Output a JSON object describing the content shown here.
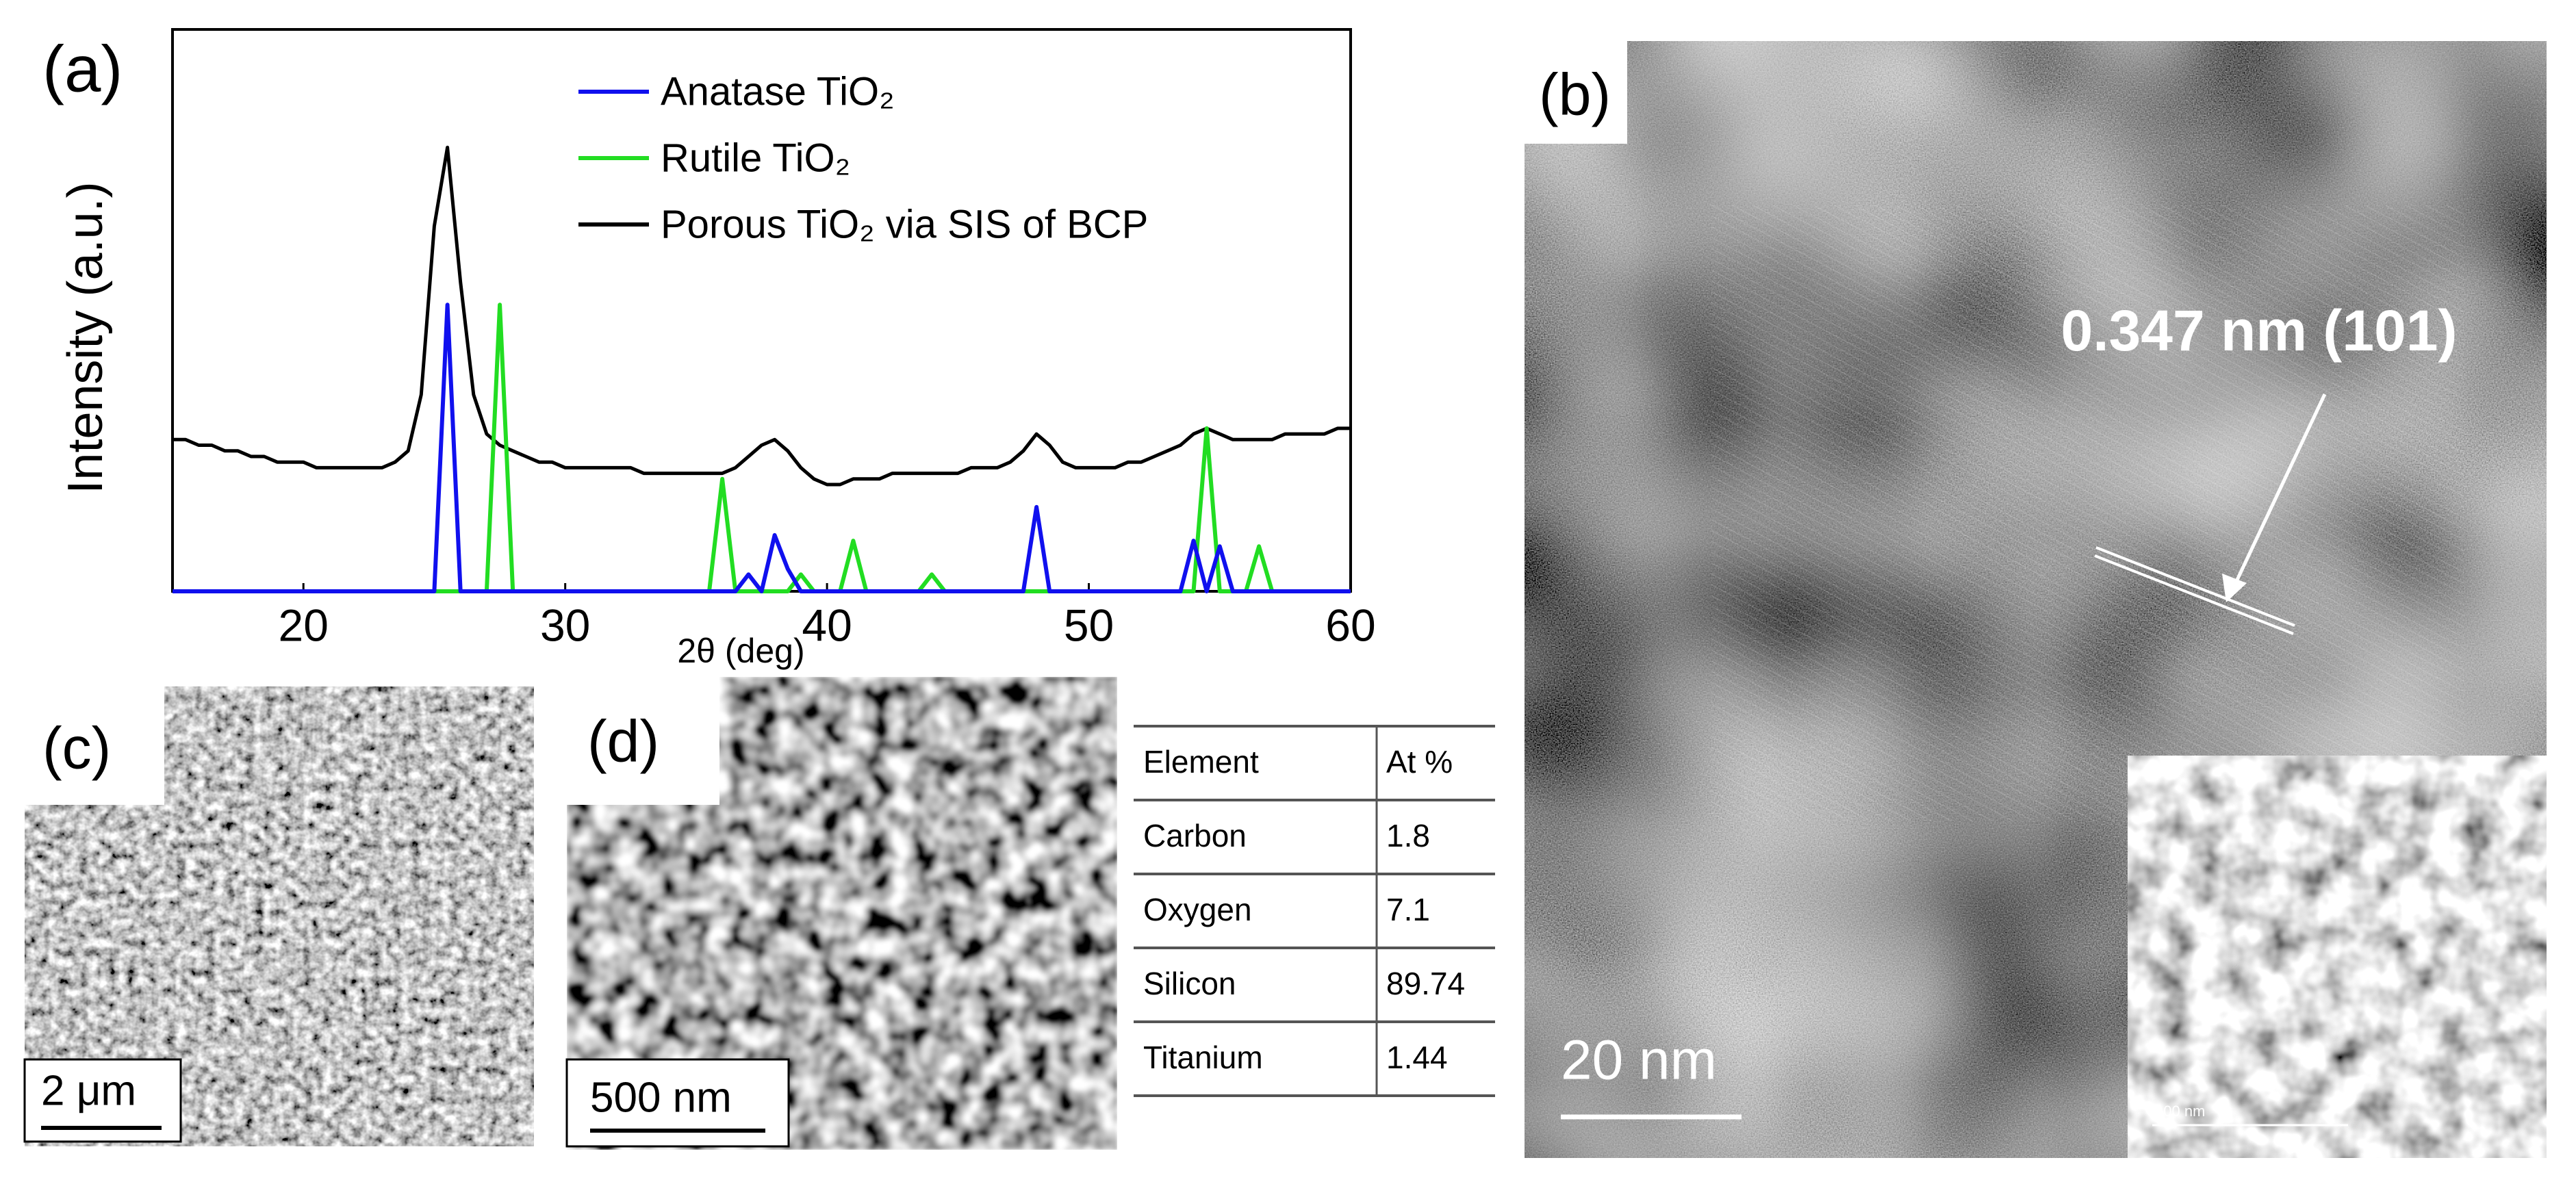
{
  "chart_data": {
    "type": "line",
    "xlabel": "2θ (deg)",
    "ylabel": "Intensity (a.u.)",
    "x": [
      15,
      15.5,
      16,
      16.5,
      17,
      17.5,
      18,
      18.5,
      19,
      19.5,
      20,
      20.5,
      21,
      21.5,
      22,
      22.5,
      23,
      23.5,
      24,
      24.5,
      25,
      25.5,
      26,
      26.5,
      27,
      27.5,
      28,
      28.5,
      29,
      29.5,
      30,
      30.5,
      31,
      31.5,
      32,
      32.5,
      33,
      33.5,
      34,
      34.5,
      35,
      35.5,
      36,
      36.5,
      37,
      37.5,
      38,
      38.5,
      39,
      39.5,
      40,
      40.5,
      41,
      41.5,
      42,
      42.5,
      43,
      43.5,
      44,
      44.5,
      45,
      45.5,
      46,
      46.5,
      47,
      47.5,
      48,
      48.5,
      49,
      49.5,
      50,
      50.5,
      51,
      51.5,
      52,
      52.5,
      53,
      53.5,
      54,
      54.5,
      55,
      55.5,
      56,
      56.5,
      57,
      57.5,
      58,
      58.5,
      59,
      59.5,
      60
    ],
    "series": [
      {
        "name": "Anatase TiO₂",
        "color": "#1010ee",
        "values": [
          0,
          0,
          0,
          0,
          0,
          0,
          0,
          0,
          0,
          0,
          0,
          0,
          0,
          0,
          0,
          0,
          0,
          0,
          0,
          0,
          0,
          51,
          0,
          0,
          0,
          0,
          0,
          0,
          0,
          0,
          0,
          0,
          0,
          0,
          0,
          0,
          0,
          0,
          0,
          0,
          0,
          0,
          0,
          0,
          3,
          0,
          10,
          4,
          0,
          0,
          0,
          0,
          0,
          0,
          0,
          0,
          0,
          0,
          0,
          0,
          0,
          0,
          0,
          0,
          0,
          0,
          15,
          0,
          0,
          0,
          0,
          0,
          0,
          0,
          0,
          0,
          0,
          0,
          9,
          0,
          8,
          0,
          0,
          0,
          0,
          0,
          0,
          0,
          0,
          0,
          0
        ]
      },
      {
        "name": "Rutile TiO₂",
        "color": "#22dd22",
        "values": [
          0,
          0,
          0,
          0,
          0,
          0,
          0,
          0,
          0,
          0,
          0,
          0,
          0,
          0,
          0,
          0,
          0,
          0,
          0,
          0,
          0,
          0,
          0,
          0,
          0,
          51,
          0,
          0,
          0,
          0,
          0,
          0,
          0,
          0,
          0,
          0,
          0,
          0,
          0,
          0,
          0,
          0,
          20,
          0,
          0,
          0,
          0,
          0,
          3,
          0,
          0,
          0,
          9,
          0,
          0,
          0,
          0,
          0,
          3,
          0,
          0,
          0,
          0,
          0,
          0,
          0,
          0,
          0,
          0,
          0,
          0,
          0,
          0,
          0,
          0,
          0,
          0,
          0,
          0,
          29,
          0,
          0,
          0,
          8,
          0,
          0,
          0,
          0,
          0,
          0,
          0
        ]
      },
      {
        "name": "Porous TiO₂ via SIS of BCP",
        "color": "#000000",
        "values": [
          27,
          27,
          26,
          26,
          25,
          25,
          24,
          24,
          23,
          23,
          23,
          22,
          22,
          22,
          22,
          22,
          22,
          23,
          25,
          35,
          65,
          79,
          55,
          35,
          28,
          26,
          25,
          24,
          23,
          23,
          22,
          22,
          22,
          22,
          22,
          22,
          21,
          21,
          21,
          21,
          21,
          21,
          21,
          22,
          24,
          26,
          27,
          25,
          22,
          20,
          19,
          19,
          20,
          20,
          20,
          21,
          21,
          21,
          21,
          21,
          21,
          22,
          22,
          22,
          23,
          25,
          28,
          26,
          23,
          22,
          22,
          22,
          22,
          23,
          23,
          24,
          25,
          26,
          28,
          29,
          28,
          27,
          27,
          27,
          27,
          28,
          28,
          28,
          28,
          29,
          29
        ]
      }
    ],
    "xlim": [
      15,
      60
    ],
    "xticks": [
      20,
      30,
      40,
      50,
      60
    ],
    "ylim": [
      0,
      100
    ]
  },
  "panels": [
    {
      "label": "(a)"
    },
    {
      "label": "(b)",
      "annotation": "0.347 nm (101)",
      "scale_bar": "20 nm",
      "inset_scale_bar": "100 nm"
    },
    {
      "label": "(c)",
      "scale_bar": "2 μm"
    },
    {
      "label": "(d)",
      "scale_bar": "500 nm"
    }
  ],
  "table": {
    "header": [
      "Element",
      "At %"
    ],
    "rows": [
      [
        "Carbon",
        1.8
      ],
      [
        "Oxygen",
        7.1
      ],
      [
        "Silicon",
        89.74
      ],
      [
        "Titanium",
        1.44
      ]
    ]
  }
}
